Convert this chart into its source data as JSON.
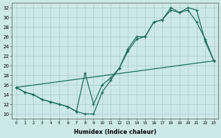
{
  "xlabel": "Humidex (Indice chaleur)",
  "bg_color": "#cce8e8",
  "grid_color": "#aacccc",
  "line_color": "#1a6b5a",
  "xlim": [
    -0.5,
    23.5
  ],
  "ylim": [
    9,
    33
  ],
  "yticks": [
    10,
    12,
    14,
    16,
    18,
    20,
    22,
    24,
    26,
    28,
    30,
    32
  ],
  "curve1_x": [
    0,
    1,
    2,
    3,
    4,
    5,
    6,
    7,
    8,
    9,
    10,
    11,
    12,
    13,
    14,
    15,
    16,
    17,
    18,
    19,
    20,
    21,
    22,
    23
  ],
  "curve1_y": [
    15.5,
    14.5,
    14,
    13,
    12.5,
    12,
    11.5,
    10.5,
    18.5,
    12,
    16,
    17.5,
    19.5,
    23.5,
    26,
    26,
    29,
    29.5,
    32,
    31,
    31.5,
    29,
    25.5,
    21
  ],
  "curve2_x": [
    0,
    1,
    2,
    3,
    4,
    5,
    6,
    7,
    8,
    9,
    10,
    11,
    12,
    13,
    14,
    15,
    16,
    17,
    18,
    19,
    20,
    21,
    22,
    23
  ],
  "curve2_y": [
    15.5,
    14.5,
    14,
    13,
    12.5,
    12,
    11.5,
    10.5,
    10,
    10,
    14.5,
    17,
    19.5,
    23,
    25.5,
    26,
    29,
    29.5,
    31.5,
    31,
    32,
    31.5,
    25,
    21
  ],
  "curve3_x": [
    0,
    23
  ],
  "curve3_y": [
    15.5,
    21
  ]
}
